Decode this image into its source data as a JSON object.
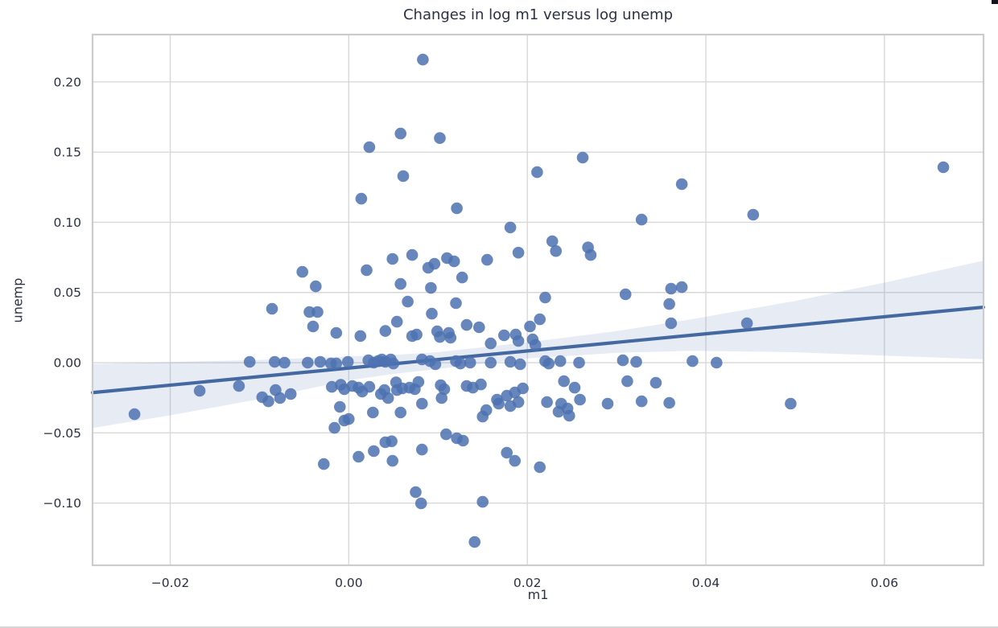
{
  "chart_data": {
    "type": "scatter",
    "title": "Changes in log m1 versus log unemp",
    "xlabel": "m1",
    "ylabel": "unemp",
    "xlim": [
      -0.0287,
      0.0711
    ],
    "ylim": [
      -0.1443,
      0.2337
    ],
    "grid": true,
    "legend_position": "none",
    "x_ticks": [
      -0.02,
      0.0,
      0.02,
      0.04,
      0.06
    ],
    "x_tick_labels": [
      "−0.02",
      "0.00",
      "0.02",
      "0.04",
      "0.06"
    ],
    "y_ticks": [
      -0.1,
      -0.05,
      0.0,
      0.05,
      0.1,
      0.15,
      0.2
    ],
    "y_tick_labels": [
      "−0.10",
      "−0.05",
      "0.00",
      "0.05",
      "0.10",
      "0.15",
      "0.20"
    ],
    "regression_line": {
      "x": [
        -0.0287,
        0.0711
      ],
      "y": [
        -0.0213,
        0.0395
      ]
    },
    "confidence_band": {
      "x": [
        -0.0287,
        -0.02,
        -0.01,
        0.0,
        0.005,
        0.01,
        0.02,
        0.03,
        0.0385,
        0.05,
        0.06,
        0.0711
      ],
      "upper": [
        -0.001,
        0.0005,
        0.002,
        0.0045,
        0.0055,
        0.0075,
        0.0145,
        0.0225,
        0.031,
        0.044,
        0.057,
        0.0727
      ],
      "lower": [
        -0.0465,
        -0.0375,
        -0.026,
        -0.0125,
        -0.008,
        -0.0045,
        0.003,
        0.007,
        0.0085,
        0.0075,
        0.005,
        0.0025
      ]
    },
    "colors": {
      "point": "#4c72b0",
      "point_opacity": 0.85,
      "line": "#4469a1",
      "band": "rgba(114,143,192,0.18)",
      "grid": "#d8d8d8",
      "spine": "#cccccc",
      "text": "#2b3142"
    },
    "points": [
      [
        0.0023,
        0.1535
      ],
      [
        0.0014,
        0.1168
      ],
      [
        0.0083,
        0.2159
      ],
      [
        0.0058,
        0.1632
      ],
      [
        0.0102,
        0.16
      ],
      [
        0.0262,
        0.1461
      ],
      [
        0.0211,
        0.1357
      ],
      [
        0.0061,
        0.1329
      ],
      [
        0.0373,
        0.1272
      ],
      [
        0.0121,
        0.11
      ],
      [
        0.0666,
        0.1392
      ],
      [
        -0.0052,
        0.0647
      ],
      [
        -0.0037,
        0.0544
      ],
      [
        0.002,
        0.0659
      ],
      [
        0.0049,
        0.0739
      ],
      [
        -0.0086,
        0.0384
      ],
      [
        -0.0044,
        0.0361
      ],
      [
        -0.0035,
        0.0361
      ],
      [
        -0.004,
        0.0258
      ],
      [
        -0.0014,
        0.0212
      ],
      [
        0.0013,
        0.019
      ],
      [
        0.0041,
        0.0226
      ],
      [
        -0.0111,
        0.0006
      ],
      [
        -0.0083,
        0.0006
      ],
      [
        -0.0072,
        0.0
      ],
      [
        -0.0046,
        0.0
      ],
      [
        -0.0032,
        0.0006
      ],
      [
        -0.002,
        -0.0006
      ],
      [
        -0.0014,
        -0.0006
      ],
      [
        -0.0001,
        0.0006
      ],
      [
        0.0022,
        0.0017
      ],
      [
        0.0028,
        0.0
      ],
      [
        0.0033,
        0.0011
      ],
      [
        0.0037,
        0.0023
      ],
      [
        0.0041,
        0.0006
      ],
      [
        0.0047,
        0.0023
      ],
      [
        0.005,
        -0.0006
      ],
      [
        0.0181,
        0.0963
      ],
      [
        0.0328,
        0.1019
      ],
      [
        0.0228,
        0.0865
      ],
      [
        0.0232,
        0.0795
      ],
      [
        0.0268,
        0.0821
      ],
      [
        0.0271,
        0.0767
      ],
      [
        0.0071,
        0.0767
      ],
      [
        0.011,
        0.0745
      ],
      [
        0.0118,
        0.0722
      ],
      [
        0.0096,
        0.0704
      ],
      [
        0.0089,
        0.0676
      ],
      [
        0.0155,
        0.0733
      ],
      [
        0.019,
        0.0784
      ],
      [
        0.0127,
        0.0607
      ],
      [
        0.0058,
        0.0561
      ],
      [
        0.0092,
        0.0533
      ],
      [
        0.031,
        0.0487
      ],
      [
        0.0361,
        0.0527
      ],
      [
        0.0373,
        0.0538
      ],
      [
        0.0359,
        0.0418
      ],
      [
        0.022,
        0.0464
      ],
      [
        0.0066,
        0.0435
      ],
      [
        0.012,
        0.0424
      ],
      [
        0.0093,
        0.0349
      ],
      [
        0.0054,
        0.0292
      ],
      [
        0.0214,
        0.0309
      ],
      [
        0.0203,
        0.0258
      ],
      [
        0.0132,
        0.0269
      ],
      [
        0.0146,
        0.0252
      ],
      [
        0.0361,
        0.0281
      ],
      [
        0.0071,
        0.0189
      ],
      [
        0.0076,
        0.02
      ],
      [
        0.0099,
        0.0223
      ],
      [
        0.0102,
        0.0183
      ],
      [
        0.0112,
        0.0212
      ],
      [
        0.0114,
        0.0178
      ],
      [
        0.0174,
        0.0195
      ],
      [
        0.0187,
        0.02
      ],
      [
        0.019,
        0.0155
      ],
      [
        0.0206,
        0.0166
      ],
      [
        0.0209,
        0.0126
      ],
      [
        0.0159,
        0.0137
      ],
      [
        0.022,
        0.0011
      ],
      [
        0.0224,
        -0.0006
      ],
      [
        0.0237,
        0.0011
      ],
      [
        0.0258,
        0.0
      ],
      [
        0.0307,
        0.0017
      ],
      [
        0.0322,
        0.0006
      ],
      [
        0.0181,
        0.0006
      ],
      [
        0.0192,
        -0.0011
      ],
      [
        0.0159,
        0.0
      ],
      [
        0.0136,
        0.0
      ],
      [
        0.0082,
        0.0023
      ],
      [
        0.0091,
        0.0011
      ],
      [
        0.0097,
        -0.0011
      ],
      [
        0.012,
        0.0011
      ],
      [
        0.0125,
        -0.0006
      ],
      [
        0.0453,
        0.1054
      ],
      [
        0.0446,
        0.0281
      ],
      [
        0.0412,
        0.0
      ],
      [
        0.0385,
        0.0011
      ],
      [
        -0.024,
        -0.0367
      ],
      [
        -0.0167,
        -0.02
      ],
      [
        -0.0123,
        -0.0166
      ],
      [
        -0.0097,
        -0.0246
      ],
      [
        -0.009,
        -0.0275
      ],
      [
        -0.0082,
        -0.0195
      ],
      [
        -0.0077,
        -0.0252
      ],
      [
        -0.0065,
        -0.0223
      ],
      [
        -0.0019,
        -0.0172
      ],
      [
        -0.0009,
        -0.0157
      ],
      [
        -0.0005,
        -0.0189
      ],
      [
        0.0004,
        -0.0166
      ],
      [
        0.0011,
        -0.0178
      ],
      [
        0.0015,
        -0.0206
      ],
      [
        0.0023,
        -0.0172
      ],
      [
        -0.001,
        -0.0315
      ],
      [
        -0.0005,
        -0.0412
      ],
      [
        0.0,
        -0.0401
      ],
      [
        -0.0016,
        -0.0464
      ],
      [
        0.0027,
        -0.0355
      ],
      [
        0.0036,
        -0.0223
      ],
      [
        0.004,
        -0.0195
      ],
      [
        0.0044,
        -0.0252
      ],
      [
        -0.0028,
        -0.0722
      ],
      [
        0.0011,
        -0.067
      ],
      [
        0.0028,
        -0.063
      ],
      [
        0.0041,
        -0.0567
      ],
      [
        0.0054,
        -0.0195
      ],
      [
        0.006,
        -0.0183
      ],
      [
        0.0068,
        -0.0178
      ],
      [
        0.0074,
        -0.0189
      ],
      [
        0.0078,
        -0.0137
      ],
      [
        0.0053,
        -0.014
      ],
      [
        0.0103,
        -0.016
      ],
      [
        0.0107,
        -0.0189
      ],
      [
        0.0104,
        -0.0252
      ],
      [
        0.0132,
        -0.0166
      ],
      [
        0.0139,
        -0.0178
      ],
      [
        0.0148,
        -0.0155
      ],
      [
        0.0241,
        -0.0132
      ],
      [
        0.0253,
        -0.0178
      ],
      [
        0.0312,
        -0.0132
      ],
      [
        0.0344,
        -0.0143
      ],
      [
        0.0166,
        -0.0263
      ],
      [
        0.0168,
        -0.0292
      ],
      [
        0.0177,
        -0.0235
      ],
      [
        0.0181,
        -0.0309
      ],
      [
        0.0186,
        -0.0212
      ],
      [
        0.019,
        -0.0281
      ],
      [
        0.0195,
        -0.0183
      ],
      [
        0.0154,
        -0.0338
      ],
      [
        0.015,
        -0.0384
      ],
      [
        0.0222,
        -0.0281
      ],
      [
        0.0238,
        -0.0292
      ],
      [
        0.0235,
        -0.0349
      ],
      [
        0.0245,
        -0.0326
      ],
      [
        0.0247,
        -0.0378
      ],
      [
        0.0259,
        -0.0263
      ],
      [
        0.029,
        -0.0292
      ],
      [
        0.0328,
        -0.0275
      ],
      [
        0.0359,
        -0.0286
      ],
      [
        0.0109,
        -0.051
      ],
      [
        0.0121,
        -0.0538
      ],
      [
        0.0128,
        -0.0555
      ],
      [
        0.0048,
        -0.056
      ],
      [
        0.0082,
        -0.0619
      ],
      [
        0.0177,
        -0.0641
      ],
      [
        0.0186,
        -0.0699
      ],
      [
        0.0214,
        -0.0744
      ],
      [
        0.0049,
        -0.0699
      ],
      [
        0.0082,
        -0.0292
      ],
      [
        0.0058,
        -0.0355
      ],
      [
        0.0075,
        -0.0922
      ],
      [
        0.0081,
        -0.1002
      ],
      [
        0.015,
        -0.0991
      ],
      [
        0.0141,
        -0.1277
      ],
      [
        0.0495,
        -0.0292
      ]
    ]
  }
}
